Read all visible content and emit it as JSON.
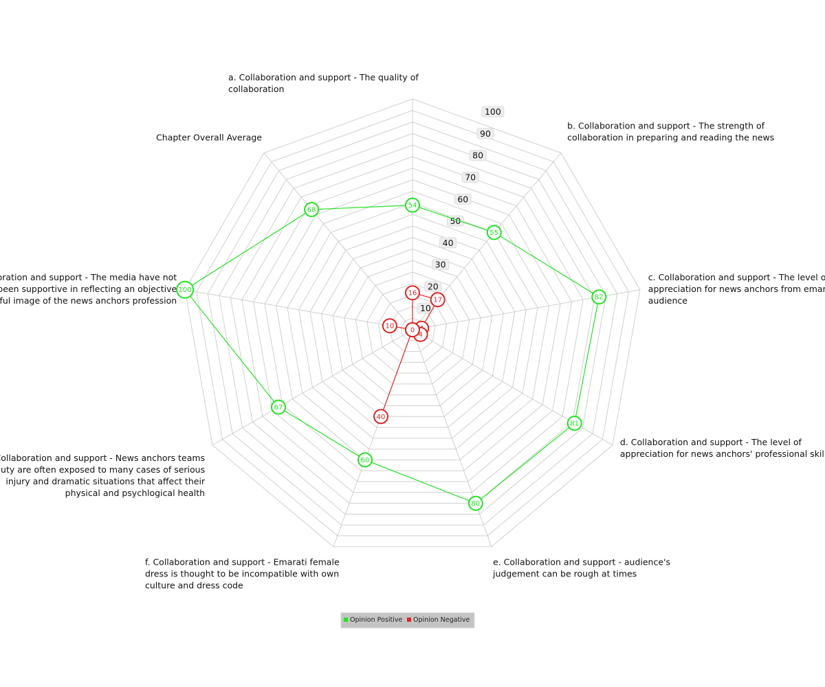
{
  "chart_data": {
    "type": "radar",
    "title": "",
    "axes": [
      "a. Collaboration and support - The quality of collaboration",
      "b. Collaboration and support - The strength of collaboration in preparing and reading the news",
      "c. Collaboration and support - The level of appreciation for news anchors from emarati audience",
      "d. Collaboration and support - The level of appreciation for news anchors' professional skills",
      "e. Collaboration and support - audience's judgement can be rough at times",
      "f. Collaboration and support - Emarati female dress is thought to be incompatible with own culture and dress code",
      "g. Collaboration and support - News anchors teams on duty are often exposed to many cases of serious injury and dramatic situations that affect their physical and psychlogical health",
      "h. Collaboration and support - The media have not been supportive in reflecting an objective and respectful image of the news anchors profession",
      "Chapter Overall Average"
    ],
    "axis_label_lines": [
      [
        "a. Collaboration and support - The quality of",
        "collaboration"
      ],
      [
        "b. Collaboration and support - The strength of",
        "collaboration in preparing and reading the news"
      ],
      [
        "c. Collaboration and support - The level of",
        "appreciation for news anchors from emarati",
        "audience"
      ],
      [
        "d. Collaboration and support - The level of",
        "appreciation for news anchors' professional skills"
      ],
      [
        "e. Collaboration and support - audience's",
        "judgement can be rough at times"
      ],
      [
        "f. Collaboration and support - Emarati female",
        "dress is thought to be incompatible with own",
        "culture and dress code"
      ],
      [
        "g. Collaboration and support - News anchors teams",
        "on duty are often exposed to many cases of serious",
        "injury and dramatic situations that affect their",
        "physical and psychlogical health"
      ],
      [
        "h. Collaboration and support - The media have not",
        "been supportive in reflecting an objective",
        "and respectful image of the news anchors profession"
      ],
      [
        "Chapter Overall Average"
      ]
    ],
    "series": [
      {
        "name": "Opinion Positive",
        "color": "#22e222",
        "values": [
          54,
          55,
          82,
          81,
          80,
          60,
          67,
          100,
          68
        ]
      },
      {
        "name": "Opinion Negative",
        "color": "#e02424",
        "values": [
          16,
          17,
          4,
          4,
          0,
          40,
          0,
          10,
          0
        ]
      }
    ],
    "r_ticks": [
      10,
      20,
      30,
      40,
      50,
      60,
      70,
      80,
      90,
      100
    ],
    "rlim": [
      0,
      100
    ],
    "grid": true,
    "legend_position": "bottom-center"
  }
}
